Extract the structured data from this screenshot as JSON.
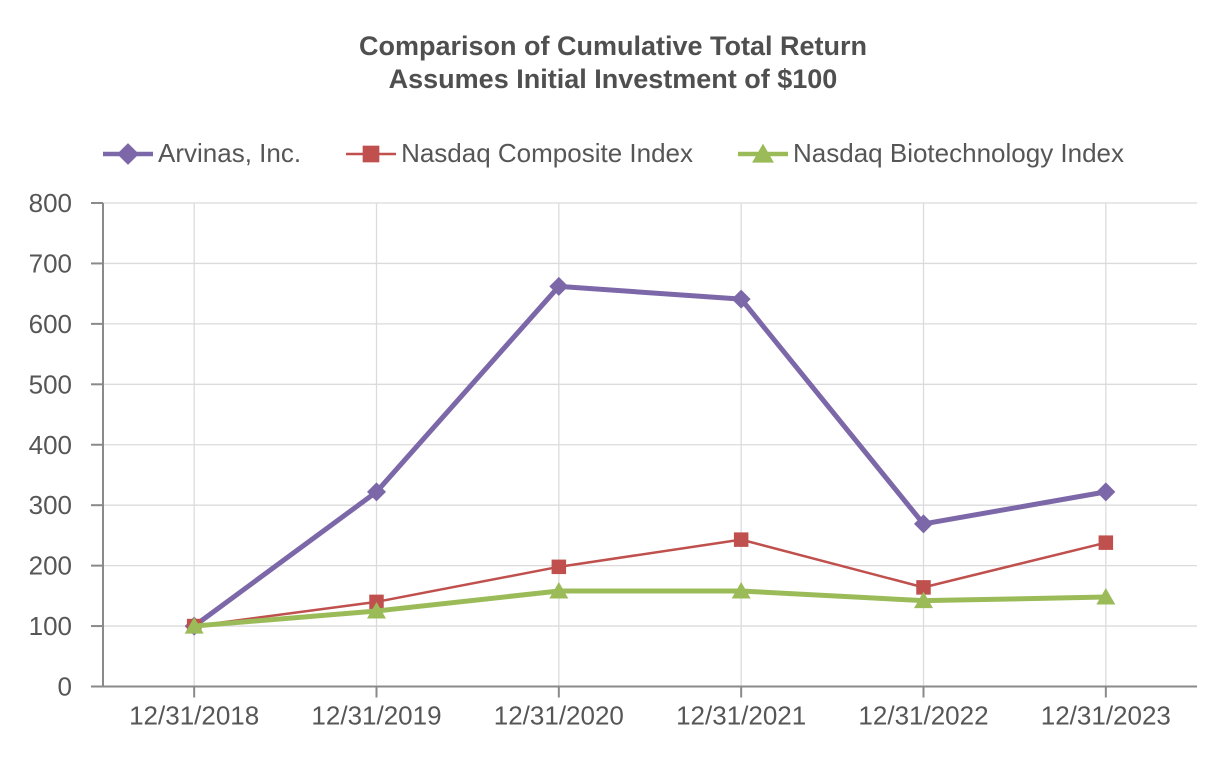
{
  "page": {
    "background_color": "#ffffff"
  },
  "chart_data": {
    "type": "line",
    "title": "Comparison of Cumulative Total Return",
    "subtitle": "Assumes Initial Investment of $100",
    "categories": [
      "12/31/2018",
      "12/31/2019",
      "12/31/2020",
      "12/31/2021",
      "12/31/2022",
      "12/31/2023"
    ],
    "series": [
      {
        "name": "Arvinas, Inc.",
        "marker": "diamond",
        "color": "#7c68a8",
        "line_width": 5,
        "values": [
          100,
          322,
          662,
          641,
          269,
          322
        ]
      },
      {
        "name": "Nasdaq Composite Index",
        "marker": "square",
        "color": "#c0504d",
        "line_width": 2.5,
        "values": [
          100,
          140,
          198,
          243,
          164,
          238
        ]
      },
      {
        "name": "Nasdaq Biotechnology Index",
        "marker": "triangle",
        "color": "#9bbb59",
        "line_width": 5,
        "values": [
          100,
          125,
          158,
          158,
          142,
          148
        ]
      }
    ],
    "ylim": [
      0,
      800
    ],
    "yticks": [
      0,
      100,
      200,
      300,
      400,
      500,
      600,
      700,
      800
    ],
    "grid": true,
    "legend_position": "top",
    "colors": {
      "axis_line": "#8a8a8a",
      "gridline": "#dbdbdb",
      "tick_label": "#565656",
      "title_text": "#4f4f4f"
    }
  }
}
